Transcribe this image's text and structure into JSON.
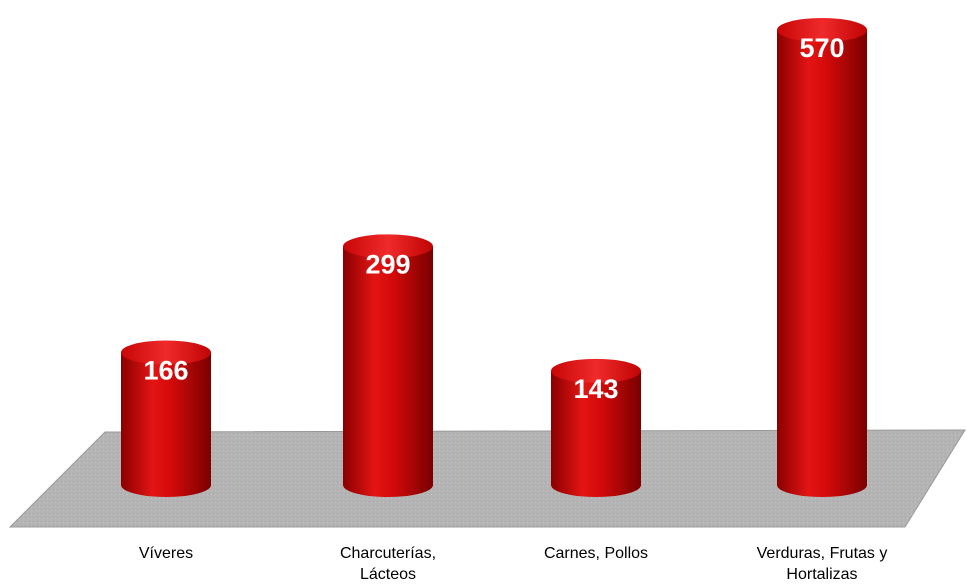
{
  "chart_data": {
    "type": "bar",
    "categories": [
      "Víveres",
      "Charcuterías, Lácteos",
      "Carnes, Pollos",
      "Verduras, Frutas y Hortalizas"
    ],
    "values": [
      166,
      299,
      143,
      570
    ],
    "color": "#d40a0a"
  }
}
